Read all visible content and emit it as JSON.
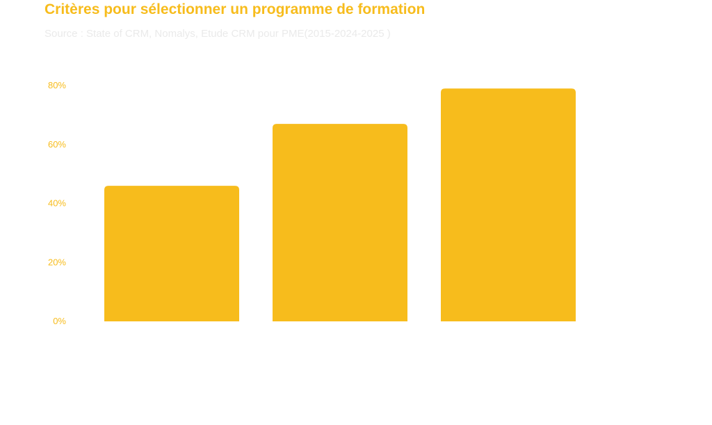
{
  "title": "Critères pour sélectionner un programme de formation",
  "subtitle": "Source : State of CRM, Nomalys, Etude CRM pour PME(2015-2024-2025 )",
  "colors": {
    "accent": "#F7BC1C",
    "title": "#F7BC1C",
    "subtitle": "#EAEAEA",
    "tick": "#F7BC1C"
  },
  "chart_data": {
    "type": "bar",
    "categories": [
      "",
      "",
      ""
    ],
    "values": [
      46,
      67,
      79
    ],
    "title": "Critères pour sélectionner un programme de formation",
    "subtitle": "Source : State of CRM, Nomalys, Etude CRM pour PME(2015-2024-2025 )",
    "ylim": [
      0,
      80
    ],
    "yticks": [
      0,
      20,
      40,
      60,
      80
    ],
    "ytick_labels": [
      "0%",
      "20%",
      "40%",
      "60%",
      "80%"
    ],
    "grid": false,
    "legend": "none"
  }
}
